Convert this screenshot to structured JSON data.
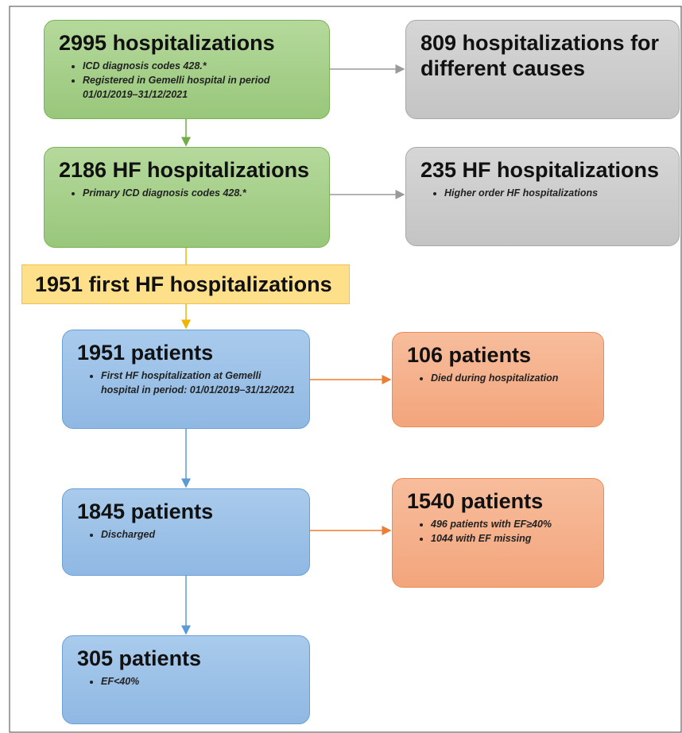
{
  "nodes": [
    {
      "title": "2995 hospitalizations",
      "bullets": [
        "ICD diagnosis codes 428.*",
        "Registered in Gemelli hospital in period 01/01/2019–31/12/2021"
      ]
    },
    {
      "title": "809 hospitalizations for different causes",
      "bullets": []
    },
    {
      "title": "2186 HF hospitalizations",
      "bullets": [
        "Primary ICD diagnosis codes 428.*"
      ]
    },
    {
      "title": "235 HF hospitalizations",
      "bullets": [
        "Higher order HF hospitalizations"
      ]
    },
    {
      "title": "1951 first HF hospitalizations",
      "bullets": []
    },
    {
      "title": "1951 patients",
      "bullets": [
        "First HF hospitalization at Gemelli hospital in period: 01/01/2019–31/12/2021"
      ]
    },
    {
      "title": "106 patients",
      "bullets": [
        "Died during hospitalization"
      ]
    },
    {
      "title": "1845 patients",
      "bullets": [
        "Discharged"
      ]
    },
    {
      "title": "1540 patients",
      "bullets": [
        "496 patients with EF≥40%",
        "1044 with EF missing"
      ]
    },
    {
      "title": "305 patients",
      "bullets": [
        "EF<40%"
      ]
    }
  ]
}
